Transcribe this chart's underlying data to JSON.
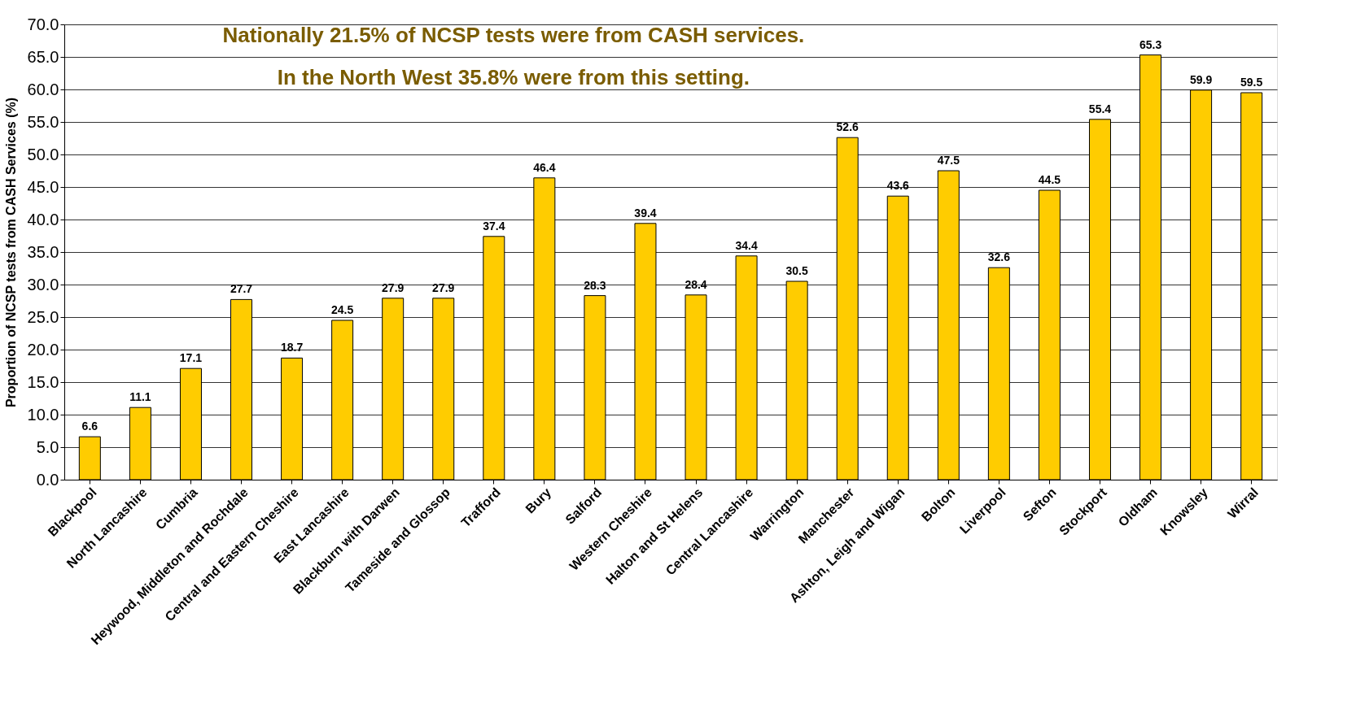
{
  "chart_data": {
    "type": "bar",
    "ylabel": "Proportion of NCSP tests from CASH Services (%)",
    "categories": [
      "Blackpool",
      "North Lancashire",
      "Cumbria",
      "Heywood, Middleton and Rochdale",
      "Central and Eastern Cheshire",
      "East Lancashire",
      "Blackburn with Darwen",
      "Tameside and Glossop",
      "Trafford",
      "Bury",
      "Salford",
      "Western Cheshire",
      "Halton and St Helens",
      "Central Lancashire",
      "Warrington",
      "Manchester",
      "Ashton, Leigh and Wigan",
      "Bolton",
      "Liverpool",
      "Sefton",
      "Stockport",
      "Oldham",
      "Knowsley",
      "Wirral"
    ],
    "values": [
      6.6,
      11.1,
      17.1,
      27.7,
      18.7,
      24.5,
      27.9,
      27.9,
      37.4,
      46.4,
      28.3,
      39.4,
      28.4,
      34.4,
      30.5,
      52.6,
      43.6,
      47.5,
      32.6,
      44.5,
      55.4,
      65.3,
      59.9,
      59.5
    ],
    "color": "#ffcc00",
    "ylim": [
      0,
      70
    ],
    "yticks": [
      {
        "value": 0,
        "label": "0.0"
      },
      {
        "value": 5,
        "label": "5.0"
      },
      {
        "value": 10,
        "label": "10.0"
      },
      {
        "value": 15,
        "label": "15.0"
      },
      {
        "value": 20,
        "label": "20.0"
      },
      {
        "value": 25,
        "label": "25.0"
      },
      {
        "value": 30,
        "label": "30.0"
      },
      {
        "value": 35,
        "label": "35.0"
      },
      {
        "value": 40,
        "label": "40.0"
      },
      {
        "value": 45,
        "label": "45.0"
      },
      {
        "value": 50,
        "label": "50.0"
      },
      {
        "value": 55,
        "label": "55.0"
      },
      {
        "value": 60,
        "label": "60.0"
      },
      {
        "value": 65,
        "label": "65.0"
      },
      {
        "value": 70,
        "label": "70.0"
      }
    ],
    "grid": "y",
    "data_labels": true,
    "annotations": [
      "Nationally 21.5% of NCSP tests were from CASH services.",
      "In the North West 35.8% were from this setting."
    ]
  }
}
